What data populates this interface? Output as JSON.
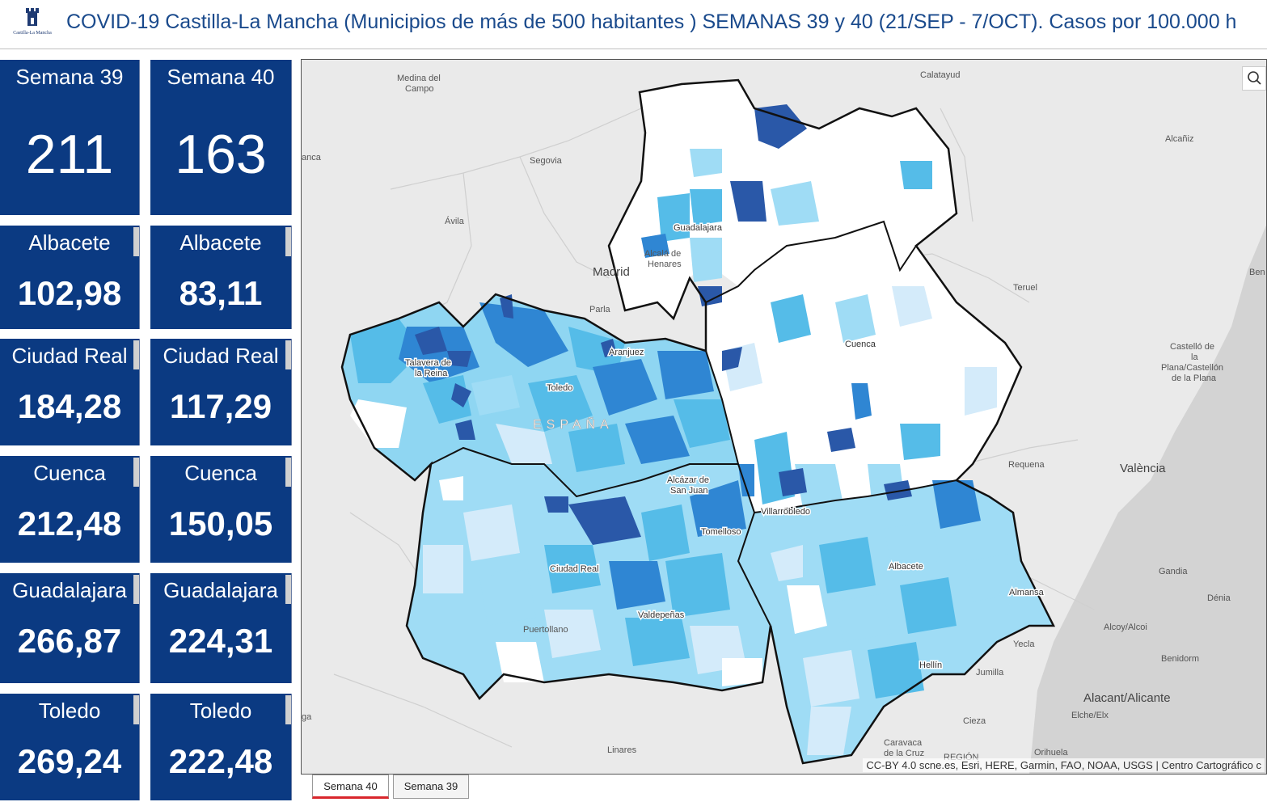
{
  "header": {
    "title": "COVID-19 Castilla-La Mancha (Municipios de más de 500 habitantes ) SEMANAS 39 y 40 (21/SEP - 7/OCT). Casos por 100.000 h",
    "logo_text": "Castilla-La Mancha"
  },
  "cards": {
    "week39": {
      "label": "Semana 39",
      "value": "211"
    },
    "week40": {
      "label": "Semana 40",
      "value": "163"
    },
    "w39_albacete": {
      "label": "Albacete",
      "value": "102,98"
    },
    "w40_albacete": {
      "label": "Albacete",
      "value": "83,11"
    },
    "w39_ciudadreal": {
      "label": "Ciudad Real",
      "value": "184,28"
    },
    "w40_ciudadreal": {
      "label": "Ciudad Real",
      "value": "117,29"
    },
    "w39_cuenca": {
      "label": "Cuenca",
      "value": "212,48"
    },
    "w40_cuenca": {
      "label": "Cuenca",
      "value": "150,05"
    },
    "w39_guadalajara": {
      "label": "Guadalajara",
      "value": "266,87"
    },
    "w40_guadalajara": {
      "label": "Guadalajara",
      "value": "224,31"
    },
    "w39_toledo": {
      "label": "Toledo",
      "value": "269,24"
    },
    "w40_toledo": {
      "label": "Toledo",
      "value": "222,48"
    }
  },
  "map": {
    "attribution": "CC-BY 4.0 scne.es, Esri, HERE, Garmin, FAO, NOAA, USGS | Centro Cartográfico c",
    "places": {
      "medina1": "Medina del",
      "medina2": "Campo",
      "calatayud": "Calatayud",
      "segovia": "Segovia",
      "alcaniz": "Alcañiz",
      "anca": "anca",
      "avila": "Ávila",
      "alcala1": "Alcalá de",
      "alcala2": "Henares",
      "madrid": "Madrid",
      "parla": "Parla",
      "teruel": "Teruel",
      "ben": "Ben",
      "guadalajara": "Guadalajara",
      "aranjuez": "Aranjuez",
      "talavera1": "Talavera de",
      "talavera2": "la Reina",
      "toledo": "Toledo",
      "cuenca": "Cuenca",
      "espana": "ESPAÑA",
      "castello1": "Castelló de",
      "castello2": "la",
      "castello3": "Plana/Castellón",
      "castello4": "de la Plana",
      "requena": "Requena",
      "valencia": "València",
      "alcazar1": "Alcázar de",
      "alcazar2": "San Juan",
      "villarrobledo": "Villarrobledo",
      "tomelloso": "Tomelloso",
      "ciudadreal": "Ciudad Real",
      "albacete": "Albacete",
      "gandia": "Gandia",
      "almansa": "Almansa",
      "denia": "Dénia",
      "valdepenas": "Valdepeñas",
      "alcoy": "Alcoy/Alcoi",
      "puertollano": "Puertollano",
      "yecla": "Yecla",
      "benidorm": "Benidorm",
      "hellin": "Hellín",
      "jumilla": "Jumilla",
      "alicante": "Alacant/Alicante",
      "elche": "Elche/Elx",
      "ga": "ga",
      "cieza": "Cieza",
      "caravaca1": "Caravaca",
      "caravaca2": "de la Cruz",
      "linares": "Linares",
      "orihuela": "Orihuela",
      "region": "REGIÓN"
    }
  },
  "tabs": {
    "tab1": "Semana 40",
    "tab2": "Semana 39"
  },
  "colors": {
    "card_bg": "#0b3a82",
    "header_text": "#1a4a8c",
    "very_light": "#d4ebfa",
    "light": "#9fdcf5",
    "mid": "#55bce8",
    "dark": "#2f86d3",
    "darkest": "#2a58a8"
  }
}
